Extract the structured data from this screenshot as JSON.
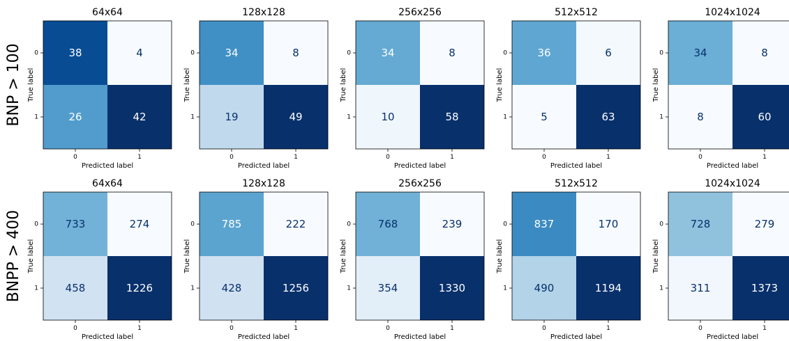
{
  "chart_data": {
    "type": "heatmap",
    "subtype": "confusion_matrix_grid",
    "colormap": "Blues",
    "x_label": "Predicted label",
    "y_label": "True label",
    "x_ticks": [
      "0",
      "1"
    ],
    "y_ticks": [
      "0",
      "1"
    ],
    "rows": [
      {
        "label": "BNP > 100",
        "panels": [
          {
            "title": "64x64",
            "matrix": [
              [
                38,
                4
              ],
              [
                26,
                42
              ]
            ]
          },
          {
            "title": "128x128",
            "matrix": [
              [
                34,
                8
              ],
              [
                19,
                49
              ]
            ]
          },
          {
            "title": "256x256",
            "matrix": [
              [
                34,
                8
              ],
              [
                10,
                58
              ]
            ]
          },
          {
            "title": "512x512",
            "matrix": [
              [
                36,
                6
              ],
              [
                5,
                63
              ]
            ]
          },
          {
            "title": "1024x1024",
            "matrix": [
              [
                34,
                8
              ],
              [
                8,
                60
              ]
            ]
          }
        ]
      },
      {
        "label": "BNPP > 400",
        "panels": [
          {
            "title": "64x64",
            "matrix": [
              [
                733,
                274
              ],
              [
                458,
                1226
              ]
            ]
          },
          {
            "title": "128x128",
            "matrix": [
              [
                785,
                222
              ],
              [
                428,
                1256
              ]
            ]
          },
          {
            "title": "256x256",
            "matrix": [
              [
                768,
                239
              ],
              [
                354,
                1330
              ]
            ]
          },
          {
            "title": "512x512",
            "matrix": [
              [
                837,
                170
              ],
              [
                490,
                1194
              ]
            ]
          },
          {
            "title": "1024x1024",
            "matrix": [
              [
                728,
                279
              ],
              [
                311,
                1373
              ]
            ]
          }
        ]
      }
    ]
  }
}
